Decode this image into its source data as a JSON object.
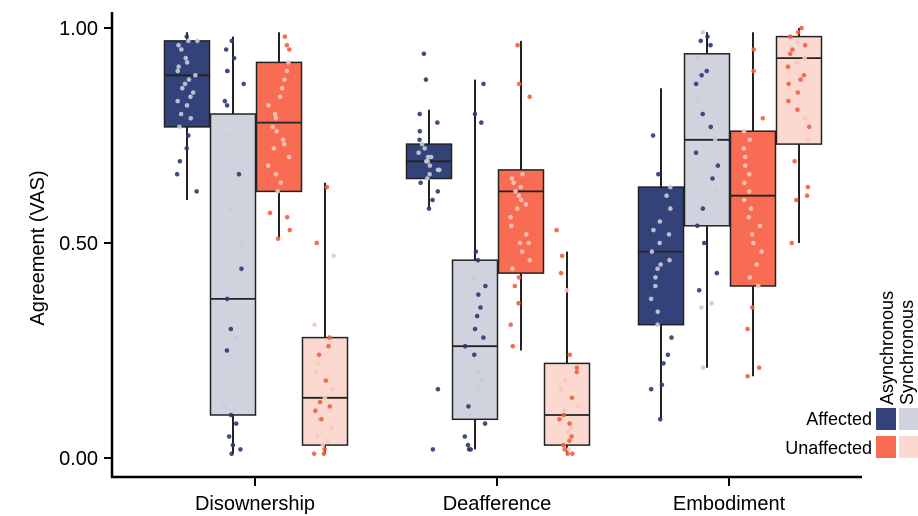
{
  "chart_data": {
    "type": "boxplot",
    "ylabel": "Agreement (VAS)",
    "ylim": [
      0,
      1
    ],
    "yticks": [
      {
        "value": 0.0,
        "label": "0.00"
      },
      {
        "value": 0.5,
        "label": "0.50"
      },
      {
        "value": 1.0,
        "label": "1.00"
      }
    ],
    "categories": [
      "Disownership",
      "Deafference",
      "Embodiment"
    ],
    "legend": {
      "columns": [
        "Asynchronous",
        "Synchronous"
      ],
      "rows": [
        "Affected",
        "Unaffected"
      ],
      "colors": {
        "Affected": {
          "Asynchronous": "#34427a",
          "Synchronous": "#d0d3de"
        },
        "Unaffected": {
          "Asynchronous": "#f76c52",
          "Synchronous": "#fbd9d0"
        }
      }
    },
    "groups": [
      {
        "category": "Disownership",
        "boxes": [
          {
            "condition": "Affected",
            "timing": "Asynchronous",
            "whisker_low": 0.6,
            "q1": 0.77,
            "median": 0.89,
            "q3": 0.97,
            "whisker_high": 0.99,
            "points": [
              0.98,
              0.97,
              0.96,
              0.95,
              0.93,
              0.92,
              0.9,
              0.89,
              0.88,
              0.87,
              0.86,
              0.85,
              0.84,
              0.83,
              0.82,
              0.8,
              0.79,
              0.77,
              0.75,
              0.72,
              0.69,
              0.66,
              0.62,
              0.97,
              0.91
            ]
          },
          {
            "condition": "Affected",
            "timing": "Synchronous",
            "whisker_low": 0.01,
            "q1": 0.1,
            "median": 0.37,
            "q3": 0.8,
            "whisker_high": 0.98,
            "points": [
              0.97,
              0.95,
              0.93,
              0.9,
              0.87,
              0.82,
              0.75,
              0.66,
              0.58,
              0.5,
              0.44,
              0.37,
              0.3,
              0.28,
              0.25,
              0.12,
              0.1,
              0.08,
              0.05,
              0.03,
              0.02,
              0.01,
              0.9,
              0.83
            ]
          },
          {
            "condition": "Unaffected",
            "timing": "Asynchronous",
            "whisker_low": 0.51,
            "q1": 0.62,
            "median": 0.78,
            "q3": 0.92,
            "whisker_high": 0.99,
            "points": [
              0.98,
              0.96,
              0.95,
              0.92,
              0.9,
              0.88,
              0.86,
              0.84,
              0.82,
              0.8,
              0.79,
              0.77,
              0.76,
              0.74,
              0.73,
              0.72,
              0.7,
              0.68,
              0.66,
              0.64,
              0.62,
              0.57,
              0.53,
              0.51,
              0.56
            ]
          },
          {
            "condition": "Unaffected",
            "timing": "Synchronous",
            "whisker_low": 0.01,
            "q1": 0.03,
            "median": 0.14,
            "q3": 0.28,
            "whisker_high": 0.64,
            "points": [
              0.63,
              0.5,
              0.47,
              0.31,
              0.28,
              0.26,
              0.24,
              0.22,
              0.2,
              0.18,
              0.16,
              0.14,
              0.13,
              0.11,
              0.09,
              0.07,
              0.05,
              0.04,
              0.03,
              0.02,
              0.01,
              0.01,
              0.09,
              0.12
            ]
          }
        ]
      },
      {
        "category": "Deafference",
        "boxes": [
          {
            "condition": "Affected",
            "timing": "Asynchronous",
            "whisker_low": 0.58,
            "q1": 0.65,
            "median": 0.69,
            "q3": 0.73,
            "whisker_high": 0.81,
            "points": [
              0.94,
              0.88,
              0.8,
              0.78,
              0.76,
              0.74,
              0.73,
              0.72,
              0.71,
              0.7,
              0.69,
              0.69,
              0.68,
              0.67,
              0.66,
              0.65,
              0.64,
              0.62,
              0.6,
              0.58,
              0.16,
              0.02,
              0.7,
              0.67
            ]
          },
          {
            "condition": "Affected",
            "timing": "Synchronous",
            "whisker_low": 0.02,
            "q1": 0.09,
            "median": 0.26,
            "q3": 0.46,
            "whisker_high": 0.88,
            "points": [
              0.87,
              0.8,
              0.78,
              0.48,
              0.46,
              0.42,
              0.4,
              0.38,
              0.35,
              0.3,
              0.28,
              0.26,
              0.24,
              0.2,
              0.16,
              0.12,
              0.1,
              0.08,
              0.05,
              0.03,
              0.02,
              0.02,
              0.33,
              0.18
            ]
          },
          {
            "condition": "Unaffected",
            "timing": "Asynchronous",
            "whisker_low": 0.25,
            "q1": 0.43,
            "median": 0.62,
            "q3": 0.67,
            "whisker_high": 0.97,
            "points": [
              0.96,
              0.87,
              0.84,
              0.66,
              0.65,
              0.64,
              0.63,
              0.62,
              0.61,
              0.6,
              0.58,
              0.56,
              0.54,
              0.52,
              0.5,
              0.48,
              0.46,
              0.44,
              0.42,
              0.4,
              0.36,
              0.31,
              0.26,
              0.59,
              0.5
            ]
          },
          {
            "condition": "Unaffected",
            "timing": "Synchronous",
            "whisker_low": 0.01,
            "q1": 0.03,
            "median": 0.1,
            "q3": 0.22,
            "whisker_high": 0.48,
            "points": [
              0.53,
              0.47,
              0.43,
              0.39,
              0.24,
              0.21,
              0.2,
              0.18,
              0.16,
              0.14,
              0.12,
              0.1,
              0.09,
              0.08,
              0.07,
              0.06,
              0.05,
              0.04,
              0.03,
              0.02,
              0.02,
              0.01,
              0.01,
              0.11
            ]
          }
        ]
      },
      {
        "category": "Embodiment",
        "boxes": [
          {
            "condition": "Affected",
            "timing": "Asynchronous",
            "whisker_low": 0.09,
            "q1": 0.31,
            "median": 0.48,
            "q3": 0.63,
            "whisker_high": 0.86,
            "points": [
              0.75,
              0.66,
              0.63,
              0.61,
              0.58,
              0.55,
              0.52,
              0.5,
              0.48,
              0.46,
              0.44,
              0.42,
              0.4,
              0.37,
              0.34,
              0.31,
              0.28,
              0.24,
              0.22,
              0.17,
              0.16,
              0.09,
              0.53,
              0.45
            ]
          },
          {
            "condition": "Affected",
            "timing": "Synchronous",
            "whisker_low": 0.21,
            "q1": 0.54,
            "median": 0.74,
            "q3": 0.94,
            "whisker_high": 0.99,
            "points": [
              0.99,
              0.98,
              0.97,
              0.96,
              0.93,
              0.9,
              0.87,
              0.83,
              0.8,
              0.77,
              0.74,
              0.71,
              0.68,
              0.65,
              0.62,
              0.58,
              0.54,
              0.5,
              0.43,
              0.39,
              0.36,
              0.35,
              0.21,
              0.89
            ]
          },
          {
            "condition": "Unaffected",
            "timing": "Asynchronous",
            "whisker_low": 0.19,
            "q1": 0.4,
            "median": 0.61,
            "q3": 0.76,
            "whisker_high": 0.99,
            "points": [
              0.95,
              0.9,
              0.79,
              0.76,
              0.74,
              0.72,
              0.7,
              0.68,
              0.66,
              0.64,
              0.62,
              0.6,
              0.58,
              0.56,
              0.54,
              0.52,
              0.5,
              0.48,
              0.45,
              0.42,
              0.4,
              0.35,
              0.3,
              0.21,
              0.19
            ]
          },
          {
            "condition": "Unaffected",
            "timing": "Synchronous",
            "whisker_low": 0.5,
            "q1": 0.73,
            "median": 0.93,
            "q3": 0.98,
            "whisker_high": 1.0,
            "points": [
              1.0,
              0.99,
              0.98,
              0.97,
              0.96,
              0.95,
              0.94,
              0.93,
              0.92,
              0.91,
              0.89,
              0.87,
              0.85,
              0.83,
              0.81,
              0.79,
              0.77,
              0.74,
              0.69,
              0.63,
              0.61,
              0.6,
              0.5,
              0.88
            ]
          }
        ]
      }
    ]
  }
}
